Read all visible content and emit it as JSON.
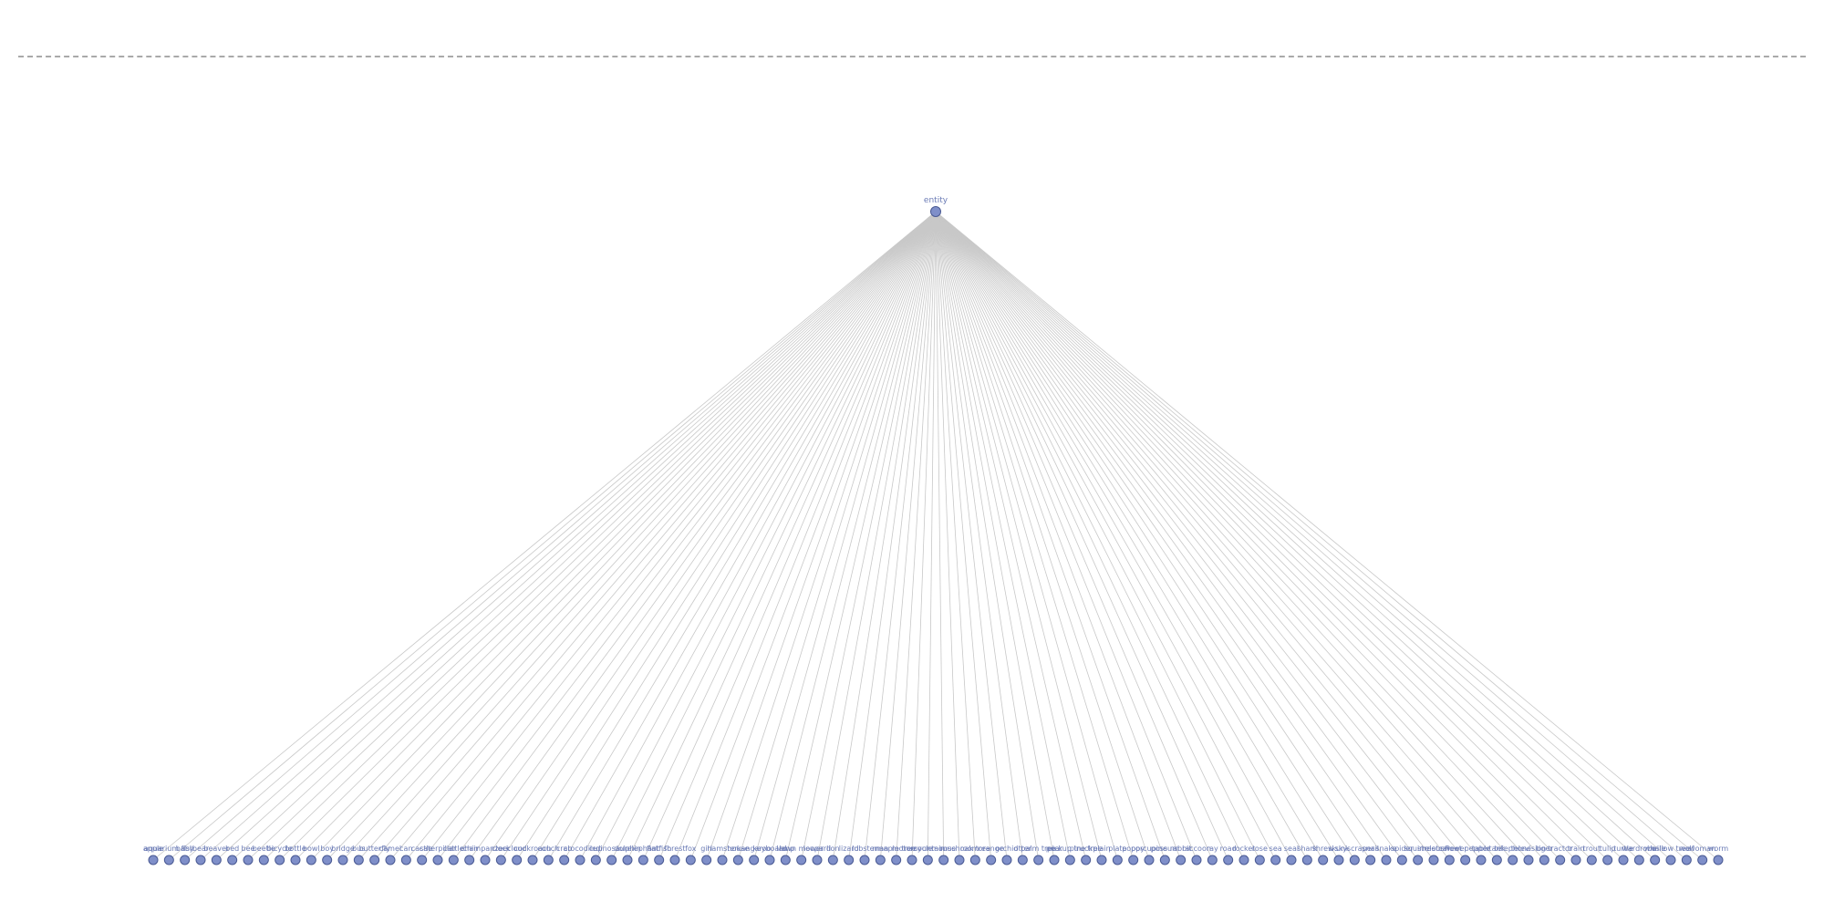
{
  "diagram": {
    "root": {
      "label": "entity"
    },
    "leaves": [
      "apple",
      "aquarium_fish",
      "baby",
      "bear",
      "beaver",
      "bed",
      "bee",
      "beetle",
      "bicycle",
      "bottle",
      "bowl",
      "boy",
      "bridge",
      "bus",
      "butterfly",
      "camel",
      "can",
      "castle",
      "caterpillar",
      "cattle",
      "chair",
      "chimpanzee",
      "clock",
      "cloud",
      "cockroach",
      "couch",
      "crab",
      "crocodile",
      "cup",
      "dinosaur",
      "dolphin",
      "elephant",
      "flatfish",
      "forest",
      "fox",
      "girl",
      "hamster",
      "house",
      "kangaroo",
      "keyboard",
      "lamp",
      "lawn_mower",
      "leopard",
      "lion",
      "lizard",
      "lobster",
      "man",
      "maple_tree",
      "motorcycle",
      "mountain",
      "mouse",
      "mushroom",
      "oak_tree",
      "orange",
      "orchid",
      "otter",
      "palm_tree",
      "pear",
      "pickup_truck",
      "pine_tree",
      "plain",
      "plate",
      "poppy",
      "porcupine",
      "possum",
      "rabbit",
      "raccoon",
      "ray",
      "road",
      "rocket",
      "rose",
      "sea",
      "seal",
      "shark",
      "shrew",
      "skunk",
      "skyscraper",
      "snail",
      "snake",
      "spider",
      "squirrel",
      "streetcar",
      "sunflower",
      "sweet_pepper",
      "table",
      "tank",
      "telephone",
      "television",
      "tiger",
      "tractor",
      "train",
      "trout",
      "tulip",
      "turtle",
      "wardrobe",
      "whale",
      "willow_tree",
      "wolf",
      "woman",
      "worm"
    ],
    "colors": {
      "node_fill": "#7f8fc9",
      "node_stroke": "#4a5a93",
      "edge": "#c8c8c8",
      "label": "#6b7bb5"
    }
  }
}
